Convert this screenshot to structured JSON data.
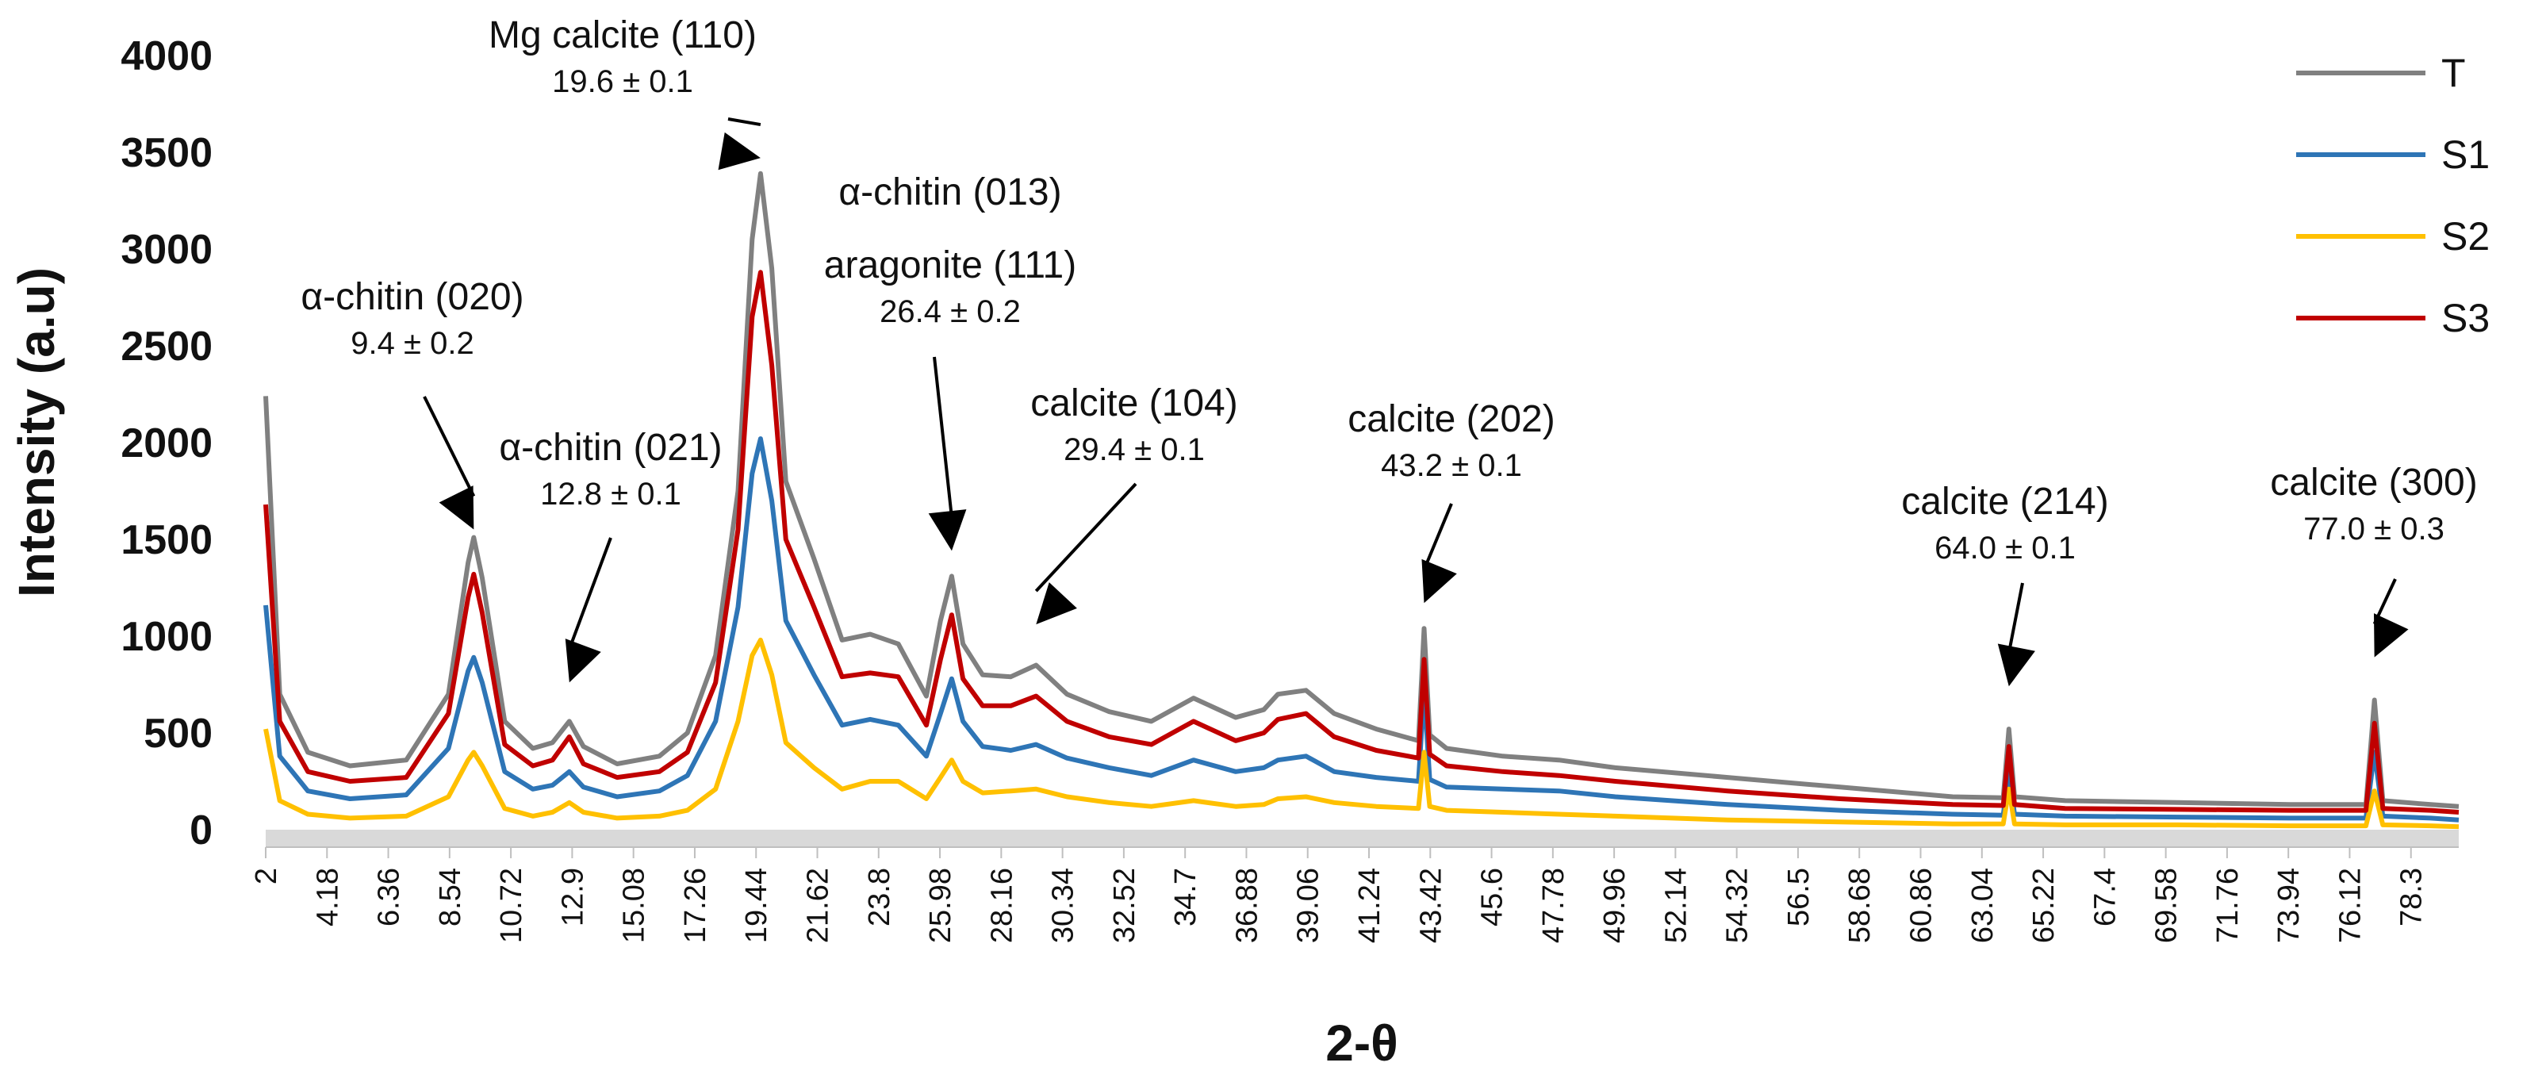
{
  "chart_data": {
    "type": "line",
    "title": "",
    "xlabel": "2-θ",
    "ylabel": "Intensity (a.u)",
    "xlim": [
      2,
      80
    ],
    "ylim": [
      0,
      4000
    ],
    "grid": false,
    "legend_position": "top-right",
    "y_ticks": [
      "0",
      "500",
      "1000",
      "1500",
      "2000",
      "2500",
      "3000",
      "3500",
      "4000"
    ],
    "y_tick_values": [
      0,
      500,
      1000,
      1500,
      2000,
      2500,
      3000,
      3500,
      4000
    ],
    "x_ticks": [
      "2",
      "4.18",
      "6.36",
      "8.54",
      "10.72",
      "12.9",
      "15.08",
      "17.26",
      "19.44",
      "21.62",
      "23.8",
      "25.98",
      "28.16",
      "30.34",
      "32.52",
      "34.7",
      "36.88",
      "39.06",
      "41.24",
      "43.42",
      "45.6",
      "47.78",
      "49.96",
      "52.14",
      "54.32",
      "56.5",
      "58.68",
      "60.86",
      "63.04",
      "65.22",
      "67.4",
      "69.58",
      "71.76",
      "73.94",
      "76.12",
      "78.3"
    ],
    "x_tick_values": [
      2,
      4.18,
      6.36,
      8.54,
      10.72,
      12.9,
      15.08,
      17.26,
      19.44,
      21.62,
      23.8,
      25.98,
      28.16,
      30.34,
      32.52,
      34.7,
      36.88,
      39.06,
      41.24,
      43.42,
      45.6,
      47.78,
      49.96,
      52.14,
      54.32,
      56.5,
      58.68,
      60.86,
      63.04,
      65.22,
      67.4,
      69.58,
      71.76,
      73.94,
      76.12,
      78.3
    ],
    "series": [
      {
        "name": "T",
        "color": "#808080",
        "x": [
          2,
          2.5,
          3.5,
          5,
          7,
          8.5,
          9.2,
          9.4,
          9.7,
          10.5,
          11.5,
          12.2,
          12.8,
          13.3,
          14.5,
          16,
          17,
          18,
          18.8,
          19.3,
          19.6,
          20,
          20.5,
          21.5,
          22.5,
          23.5,
          24.5,
          25.5,
          26,
          26.4,
          26.8,
          27.5,
          28.5,
          29.4,
          30.5,
          32,
          33.5,
          35,
          36.5,
          37.5,
          38,
          39,
          40,
          41.5,
          43,
          43.2,
          43.4,
          44,
          46,
          48,
          50,
          54,
          58,
          62,
          63.8,
          64,
          64.2,
          66,
          70,
          74,
          76.7,
          77,
          77.3,
          79,
          80
        ],
        "values": [
          2240,
          700,
          400,
          330,
          360,
          700,
          1380,
          1510,
          1300,
          560,
          420,
          450,
          560,
          430,
          340,
          380,
          500,
          900,
          1750,
          3050,
          3390,
          2900,
          1800,
          1400,
          980,
          1010,
          960,
          690,
          1080,
          1310,
          960,
          800,
          790,
          850,
          700,
          610,
          560,
          680,
          580,
          620,
          700,
          720,
          600,
          520,
          460,
          1040,
          490,
          420,
          380,
          360,
          320,
          270,
          220,
          170,
          165,
          520,
          170,
          150,
          140,
          130,
          130,
          670,
          150,
          130,
          120
        ]
      },
      {
        "name": "S1",
        "color": "#2E75B6",
        "x": [
          2,
          2.5,
          3.5,
          5,
          7,
          8.5,
          9.2,
          9.4,
          9.7,
          10.5,
          11.5,
          12.2,
          12.8,
          13.3,
          14.5,
          16,
          17,
          18,
          18.8,
          19.3,
          19.6,
          20,
          20.5,
          21.5,
          22.5,
          23.5,
          24.5,
          25.5,
          26,
          26.4,
          26.8,
          27.5,
          28.5,
          29.4,
          30.5,
          32,
          33.5,
          35,
          36.5,
          37.5,
          38,
          39,
          40,
          41.5,
          43,
          43.2,
          43.4,
          44,
          46,
          48,
          50,
          54,
          58,
          62,
          63.8,
          64,
          64.2,
          66,
          70,
          74,
          76.7,
          77,
          77.3,
          79,
          80
        ],
        "values": [
          1160,
          380,
          200,
          160,
          180,
          420,
          820,
          890,
          760,
          300,
          210,
          230,
          300,
          220,
          170,
          200,
          280,
          560,
          1150,
          1840,
          2020,
          1700,
          1080,
          800,
          540,
          570,
          540,
          380,
          600,
          780,
          560,
          430,
          410,
          440,
          370,
          320,
          280,
          360,
          300,
          320,
          360,
          380,
          300,
          270,
          250,
          720,
          260,
          220,
          210,
          200,
          170,
          130,
          100,
          80,
          75,
          310,
          80,
          70,
          65,
          60,
          60,
          400,
          70,
          60,
          50
        ]
      },
      {
        "name": "S2",
        "color": "#FFC000",
        "x": [
          2,
          2.5,
          3.5,
          5,
          7,
          8.5,
          9.2,
          9.4,
          9.7,
          10.5,
          11.5,
          12.2,
          12.8,
          13.3,
          14.5,
          16,
          17,
          18,
          18.8,
          19.3,
          19.6,
          20,
          20.5,
          21.5,
          22.5,
          23.5,
          24.5,
          25.5,
          26,
          26.4,
          26.8,
          27.5,
          28.5,
          29.4,
          30.5,
          32,
          33.5,
          35,
          36.5,
          37.5,
          38,
          39,
          40,
          41.5,
          43,
          43.2,
          43.4,
          44,
          46,
          48,
          50,
          54,
          58,
          62,
          63.8,
          64,
          64.2,
          66,
          70,
          74,
          76.7,
          77,
          77.3,
          79,
          80
        ],
        "values": [
          520,
          150,
          80,
          60,
          70,
          170,
          360,
          400,
          330,
          110,
          70,
          90,
          140,
          90,
          60,
          70,
          100,
          210,
          560,
          900,
          980,
          800,
          450,
          320,
          210,
          250,
          250,
          160,
          270,
          360,
          250,
          190,
          200,
          210,
          170,
          140,
          120,
          150,
          120,
          130,
          160,
          170,
          140,
          120,
          110,
          400,
          120,
          100,
          90,
          80,
          70,
          50,
          40,
          30,
          30,
          210,
          30,
          25,
          25,
          20,
          20,
          200,
          25,
          20,
          15
        ]
      },
      {
        "name": "S3",
        "color": "#C00000",
        "x": [
          2,
          2.5,
          3.5,
          5,
          7,
          8.5,
          9.2,
          9.4,
          9.7,
          10.5,
          11.5,
          12.2,
          12.8,
          13.3,
          14.5,
          16,
          17,
          18,
          18.8,
          19.3,
          19.6,
          20,
          20.5,
          21.5,
          22.5,
          23.5,
          24.5,
          25.5,
          26,
          26.4,
          26.8,
          27.5,
          28.5,
          29.4,
          30.5,
          32,
          33.5,
          35,
          36.5,
          37.5,
          38,
          39,
          40,
          41.5,
          43,
          43.2,
          43.4,
          44,
          46,
          48,
          50,
          54,
          58,
          62,
          63.8,
          64,
          64.2,
          66,
          70,
          74,
          76.7,
          77,
          77.3,
          79,
          80
        ],
        "values": [
          1680,
          560,
          300,
          250,
          270,
          600,
          1200,
          1320,
          1120,
          440,
          330,
          360,
          480,
          340,
          270,
          300,
          400,
          760,
          1550,
          2650,
          2880,
          2400,
          1500,
          1150,
          790,
          810,
          790,
          540,
          880,
          1110,
          780,
          640,
          640,
          690,
          560,
          480,
          440,
          560,
          460,
          500,
          570,
          600,
          480,
          410,
          370,
          880,
          390,
          330,
          300,
          280,
          250,
          200,
          160,
          130,
          125,
          430,
          130,
          110,
          105,
          100,
          100,
          550,
          110,
          100,
          90
        ]
      }
    ],
    "annotations": [
      {
        "name": "α-chitin (020)",
        "value": "9.4 ± 0.2",
        "x": 9.4,
        "y": 1510
      },
      {
        "name": "α-chitin (021)",
        "value": "12.8 ± 0.1",
        "x": 12.8,
        "y": 720
      },
      {
        "name": "Mg calcite (110)",
        "value": "19.6 ± 0.1",
        "x": 19.6,
        "y": 3430
      },
      {
        "name": "α-chitin (013)",
        "value": "",
        "x": 26.4,
        "y": 1400
      },
      {
        "name": "aragonite (111)",
        "value": "26.4 ± 0.2",
        "x": 26.4,
        "y": 1400
      },
      {
        "name": "calcite (104)",
        "value": "29.4 ± 0.1",
        "x": 29.4,
        "y": 1020
      },
      {
        "name": "calcite (202)",
        "value": "43.2 ± 0.1",
        "x": 43.2,
        "y": 1130
      },
      {
        "name": "calcite (214)",
        "value": "64.0 ± 0.1",
        "x": 64.0,
        "y": 700
      },
      {
        "name": "calcite (300)",
        "value": "77.0 ± 0.3",
        "x": 77.0,
        "y": 850
      }
    ]
  }
}
